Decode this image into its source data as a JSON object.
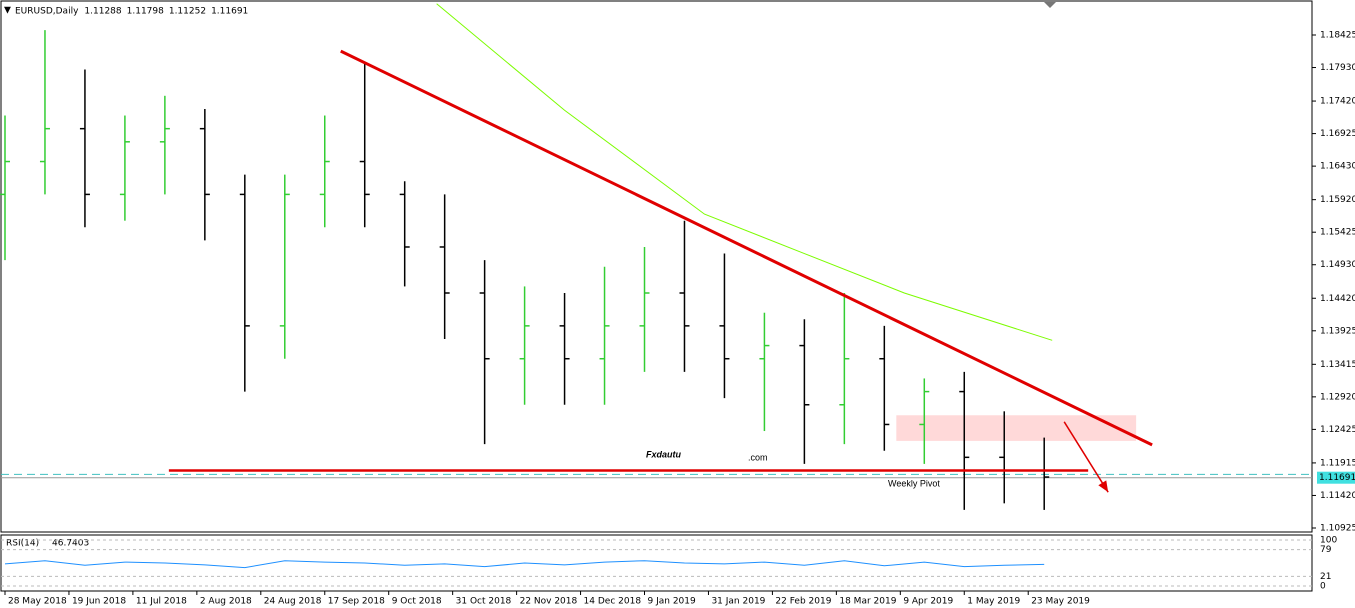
{
  "chart_data": {
    "type": "ohlc",
    "symbol": "EURUSD,Daily",
    "ohlc": [
      1.11288,
      1.11798,
      1.11252,
      1.11691
    ],
    "x": [
      0,
      10,
      20,
      30,
      40,
      50,
      60,
      70,
      80,
      90,
      100,
      110,
      120,
      130,
      140,
      150,
      160,
      170,
      180,
      190,
      200,
      210,
      220,
      230,
      240,
      250,
      260
    ],
    "open": [
      1.16,
      1.165,
      1.17,
      1.16,
      1.168,
      1.17,
      1.16,
      1.14,
      1.16,
      1.165,
      1.16,
      1.152,
      1.145,
      1.135,
      1.14,
      1.135,
      1.14,
      1.145,
      1.14,
      1.135,
      1.137,
      1.128,
      1.135,
      1.125,
      1.13,
      1.12,
      1.118
    ],
    "high": [
      1.172,
      1.185,
      1.179,
      1.172,
      1.175,
      1.173,
      1.163,
      1.163,
      1.172,
      1.18,
      1.162,
      1.16,
      1.15,
      1.146,
      1.145,
      1.149,
      1.152,
      1.156,
      1.151,
      1.142,
      1.141,
      1.145,
      1.14,
      1.132,
      1.133,
      1.127,
      1.123
    ],
    "low": [
      1.15,
      1.16,
      1.155,
      1.156,
      1.16,
      1.153,
      1.13,
      1.135,
      1.155,
      1.155,
      1.146,
      1.138,
      1.122,
      1.128,
      1.128,
      1.128,
      1.133,
      1.133,
      1.129,
      1.124,
      1.119,
      1.122,
      1.121,
      1.119,
      1.112,
      1.113,
      1.112
    ],
    "close": [
      1.165,
      1.17,
      1.16,
      1.168,
      1.17,
      1.16,
      1.14,
      1.16,
      1.165,
      1.16,
      1.152,
      1.145,
      1.135,
      1.14,
      1.135,
      1.14,
      1.145,
      1.14,
      1.135,
      1.137,
      1.128,
      1.135,
      1.125,
      1.13,
      1.12,
      1.118,
      1.117
    ],
    "up_color": "#32cd32",
    "down_color": "#000000",
    "xlim": [
      -1,
      327
    ],
    "xticks": [
      {
        "value": 0,
        "label": "28 May 2018"
      },
      {
        "value": 16,
        "label": "19 Jun 2018"
      },
      {
        "value": 32,
        "label": "11 Jul 2018"
      },
      {
        "value": 48,
        "label": "2 Aug 2018"
      },
      {
        "value": 64,
        "label": "24 Aug 2018"
      },
      {
        "value": 80,
        "label": "17 Sep 2018"
      },
      {
        "value": 96,
        "label": "9 Oct 2018"
      },
      {
        "value": 112,
        "label": "31 Oct 2018"
      },
      {
        "value": 128,
        "label": "22 Nov 2018"
      },
      {
        "value": 144,
        "label": "14 Dec 2018"
      },
      {
        "value": 160,
        "label": "9 Jan 2019"
      },
      {
        "value": 176,
        "label": "31 Jan 2019"
      },
      {
        "value": 192,
        "label": "22 Feb 2019"
      },
      {
        "value": 208,
        "label": "18 Mar 2019"
      },
      {
        "value": 224,
        "label": "9 Apr 2019"
      },
      {
        "value": 240,
        "label": "1 May 2019"
      },
      {
        "value": 256,
        "label": "23 May 2019"
      }
    ],
    "ylim": [
      1.10864,
      1.18927
    ],
    "yticks": [
      1.18425,
      {
        "value": 1.1793,
        "label": "1.17930"
      },
      {
        "value": 1.1742,
        "label": "1.17420"
      },
      1.16925,
      {
        "value": 1.1643,
        "label": "1.16430"
      },
      {
        "value": 1.1592,
        "label": "1.15920"
      },
      1.15425,
      {
        "value": 1.1493,
        "label": "1.14930"
      },
      {
        "value": 1.1442,
        "label": "1.14420"
      },
      1.13925,
      1.13415,
      {
        "value": 1.1292,
        "label": "1.12920"
      },
      1.12425,
      1.11915,
      {
        "value": 1.1142,
        "label": "1.11420"
      },
      1.10925
    ],
    "moving_average": {
      "color": "#7cfc00",
      "x": [
        108,
        140,
        175,
        200,
        225,
        262
      ],
      "values": [
        1.189,
        1.1728,
        1.157,
        1.151,
        1.145,
        1.1378
      ]
    },
    "trendline": {
      "color": "#e00000",
      "x": [
        84,
        287
      ],
      "values": [
        1.1818,
        1.1219
      ]
    },
    "support": {
      "color": "#e00000",
      "x": [
        41,
        271
      ],
      "values": [
        1.118,
        1.118
      ]
    },
    "arrow": {
      "color": "#e00000",
      "x": [
        265,
        276
      ],
      "values": [
        1.1254,
        1.1147
      ]
    },
    "zone": {
      "color": "#ffcfcf",
      "x": [
        223,
        283
      ],
      "values": [
        1.1264,
        1.1225
      ]
    },
    "pivot_label": "Weekly Pivot",
    "pivot_color": "#40e0e0",
    "price_line": 1.1174,
    "bid_line": 1.1169,
    "watermark": {
      "brand": "Fxdautu",
      "domain": ".com"
    },
    "rsi": {
      "name": "RSI(14)",
      "value": 46.7403,
      "color": "#1e90ff",
      "ylim": [
        0,
        100
      ],
      "yticks": [
        0,
        21,
        79,
        100
      ],
      "values": [
        48,
        55,
        45,
        52,
        50,
        46,
        40,
        55,
        52,
        50,
        45,
        48,
        42,
        50,
        46,
        52,
        55,
        50,
        48,
        52,
        45,
        55,
        44,
        52,
        42,
        45,
        47
      ]
    }
  }
}
